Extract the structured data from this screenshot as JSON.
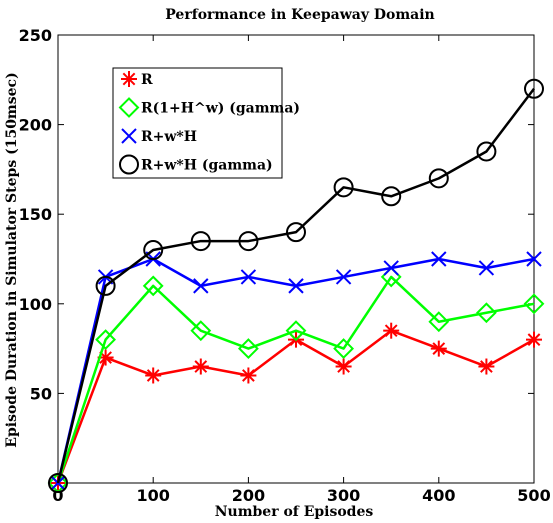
{
  "chart_data": {
    "type": "line",
    "title": "Performance in Keepaway Domain",
    "xlabel": "Number of Episodes",
    "ylabel": "Episode Duration in Simulator Steps (150msec)",
    "xlim": [
      0,
      500
    ],
    "ylim": [
      0,
      250
    ],
    "xticks": [
      0,
      100,
      200,
      300,
      400,
      500
    ],
    "yticks": [
      50,
      100,
      150,
      200,
      250
    ],
    "grid": false,
    "legend_position": "top-left",
    "x": [
      0,
      50,
      100,
      150,
      200,
      250,
      300,
      350,
      400,
      450,
      500
    ],
    "series": [
      {
        "name": "R",
        "color": "#ff0000",
        "marker": "asterisk",
        "values": [
          0,
          70,
          60,
          65,
          60,
          80,
          65,
          85,
          75,
          65,
          80
        ]
      },
      {
        "name": "R(1+H^w) (gamma)",
        "color": "#00ff00",
        "marker": "diamond",
        "values": [
          0,
          80,
          110,
          85,
          75,
          85,
          75,
          115,
          90,
          95,
          100
        ]
      },
      {
        "name": "R+w*H",
        "color": "#0000ff",
        "marker": "x",
        "values": [
          0,
          115,
          125,
          110,
          115,
          110,
          115,
          120,
          125,
          120,
          125
        ]
      },
      {
        "name": "R+w*H (gamma)",
        "color": "#000000",
        "marker": "circle",
        "values": [
          0,
          110,
          130,
          135,
          135,
          140,
          165,
          160,
          170,
          185,
          220
        ]
      }
    ]
  }
}
